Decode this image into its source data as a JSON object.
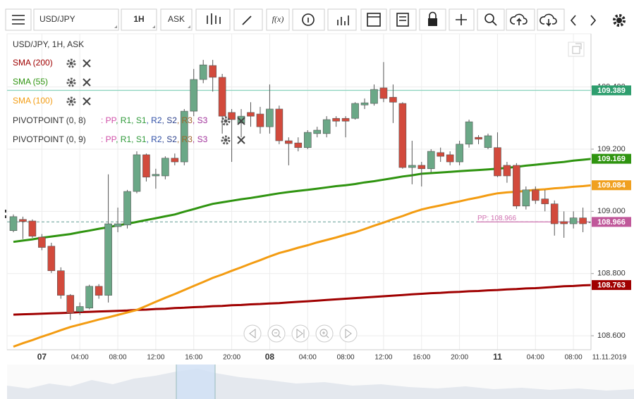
{
  "toolbar": {
    "symbol": "USD/JPY",
    "interval": "1H",
    "price_type": "ASK",
    "fx": "f(x)"
  },
  "chart_data": {
    "type": "candlestick",
    "title": "USD/JPY, 1H, ASK",
    "categories": [
      null,
      null,
      null,
      "07",
      null,
      null,
      null,
      "04:00",
      null,
      null,
      null,
      "08:00",
      null,
      null,
      null,
      "12:00",
      null,
      null,
      null,
      "16:00",
      null,
      null,
      null,
      "20:00",
      null,
      null,
      null,
      "08",
      null,
      null,
      null,
      "04:00",
      null,
      null,
      null,
      "08:00",
      null,
      null,
      null,
      "12:00",
      null,
      null,
      null,
      "16:00",
      null,
      null,
      null,
      "20:00",
      null,
      null,
      null,
      "11",
      null,
      null,
      null,
      "04:00",
      null,
      null,
      null,
      "08:00",
      null,
      null
    ],
    "open": [
      108.938,
      108.974,
      108.969,
      108.917,
      108.888,
      108.809,
      108.73,
      108.678,
      108.689,
      108.759,
      108.73,
      108.951,
      108.956,
      109.064,
      109.182,
      109.114,
      109.114,
      109.171,
      109.159,
      109.322,
      109.424,
      109.469,
      109.431,
      109.318,
      109.284,
      109.318,
      109.313,
      109.272,
      109.329,
      109.227,
      109.22,
      109.205,
      109.25,
      109.25,
      109.299,
      109.299,
      109.299,
      109.342,
      109.347,
      109.397,
      109.367,
      109.347,
      109.141,
      109.148,
      109.137,
      109.189,
      109.182,
      109.159,
      109.216,
      109.238,
      109.205,
      109.205,
      109.148,
      109.148,
      109.017,
      109.069,
      109.04,
      109.024,
      108.967,
      108.96,
      108.979,
      108.965
    ],
    "high": [
      108.99,
      108.983,
      108.974,
      108.927,
      108.899,
      108.82,
      108.734,
      108.707,
      108.764,
      108.766,
      109.119,
      109.012,
      109.069,
      109.193,
      109.186,
      109.137,
      109.177,
      109.186,
      109.329,
      109.458,
      109.487,
      109.487,
      109.442,
      109.329,
      109.329,
      109.351,
      109.336,
      109.408,
      109.34,
      109.238,
      109.238,
      109.261,
      109.272,
      109.306,
      109.306,
      109.306,
      109.351,
      109.363,
      109.408,
      109.48,
      109.408,
      109.351,
      109.227,
      109.159,
      109.2,
      109.205,
      109.193,
      109.227,
      109.295,
      109.245,
      109.25,
      109.254,
      109.159,
      109.155,
      109.08,
      109.08,
      109.069,
      109.035,
      109.0,
      109.0,
      109.012,
      108.99
    ],
    "low": [
      108.933,
      108.911,
      108.915,
      108.875,
      108.802,
      108.719,
      108.651,
      108.667,
      108.685,
      108.719,
      108.707,
      108.933,
      108.945,
      109.058,
      109.096,
      109.073,
      109.103,
      109.148,
      109.148,
      109.306,
      109.412,
      109.385,
      109.25,
      109.159,
      109.238,
      109.272,
      109.25,
      109.25,
      109.216,
      109.148,
      109.193,
      109.2,
      109.238,
      109.238,
      109.272,
      109.238,
      109.295,
      109.329,
      109.34,
      109.351,
      109.284,
      109.137,
      109.087,
      109.08,
      109.125,
      109.159,
      109.148,
      109.148,
      109.205,
      109.216,
      109.2,
      109.11,
      109.092,
      109.008,
      109.006,
      109.024,
      109.0,
      108.922,
      108.915,
      108.945,
      108.933,
      108.956
    ],
    "close": [
      108.983,
      108.967,
      108.92,
      108.884,
      108.809,
      108.73,
      108.673,
      108.694,
      108.759,
      108.73,
      108.96,
      108.96,
      109.064,
      109.182,
      109.11,
      109.119,
      109.171,
      109.159,
      109.322,
      109.424,
      109.471,
      109.431,
      109.306,
      109.295,
      109.306,
      109.306,
      109.272,
      109.329,
      109.227,
      109.218,
      109.205,
      109.254,
      109.261,
      109.295,
      109.29,
      109.29,
      109.347,
      109.349,
      109.392,
      109.363,
      109.351,
      109.141,
      109.148,
      109.137,
      109.193,
      109.177,
      109.159,
      109.216,
      109.288,
      109.232,
      109.243,
      109.114,
      109.114,
      109.017,
      109.069,
      109.035,
      109.024,
      108.96,
      108.96,
      108.979,
      108.96,
      108.966
    ],
    "up_color": "#6ba887",
    "down_color": "#d24a3c",
    "series": [
      {
        "name": "SMA (200)",
        "color": "#a00000",
        "values": [
          108.668,
          108.669,
          108.67,
          108.671,
          108.672,
          108.673,
          108.674,
          108.676,
          108.677,
          108.678,
          108.679,
          108.68,
          108.681,
          108.683,
          108.684,
          108.686,
          108.687,
          108.689,
          108.69,
          108.692,
          108.693,
          108.695,
          108.696,
          108.698,
          108.699,
          108.701,
          108.702,
          108.704,
          108.705,
          108.707,
          108.709,
          108.711,
          108.713,
          108.715,
          108.717,
          108.719,
          108.721,
          108.723,
          108.725,
          108.727,
          108.729,
          108.731,
          108.733,
          108.735,
          108.737,
          108.738,
          108.74,
          108.741,
          108.743,
          108.744,
          108.746,
          108.747,
          108.749,
          108.75,
          108.752,
          108.753,
          108.755,
          108.757,
          108.759,
          108.76,
          108.762,
          108.763
        ]
      },
      {
        "name": "SMA (55)",
        "color": "#2f9410",
        "values": [
          108.902,
          108.906,
          108.91,
          108.915,
          108.919,
          108.923,
          108.927,
          108.933,
          108.938,
          108.944,
          108.949,
          108.955,
          108.96,
          108.966,
          108.972,
          108.978,
          108.984,
          108.99,
          108.999,
          109.007,
          109.016,
          109.024,
          109.029,
          109.034,
          109.039,
          109.043,
          109.048,
          109.053,
          109.058,
          109.062,
          109.066,
          109.069,
          109.073,
          109.077,
          109.081,
          109.084,
          109.088,
          109.093,
          109.097,
          109.102,
          109.107,
          109.112,
          109.116,
          109.121,
          109.123,
          109.125,
          109.127,
          109.129,
          109.131,
          109.133,
          109.135,
          109.137,
          109.14,
          109.143,
          109.147,
          109.15,
          109.153,
          109.156,
          109.159,
          109.163,
          109.166,
          109.169
        ]
      },
      {
        "name": "SMA (100)",
        "color": "#f39c12",
        "values": [
          108.565,
          108.576,
          108.586,
          108.597,
          108.607,
          108.618,
          108.628,
          108.636,
          108.644,
          108.652,
          108.659,
          108.667,
          108.675,
          108.683,
          108.696,
          108.709,
          108.722,
          108.734,
          108.747,
          108.76,
          108.773,
          108.786,
          108.797,
          108.809,
          108.82,
          108.832,
          108.843,
          108.855,
          108.866,
          108.874,
          108.883,
          108.891,
          108.9,
          108.908,
          108.916,
          108.925,
          108.933,
          108.943,
          108.954,
          108.964,
          108.975,
          108.985,
          108.996,
          109.006,
          109.013,
          109.019,
          109.026,
          109.032,
          109.039,
          109.045,
          109.052,
          109.058,
          109.061,
          109.063,
          109.066,
          109.069,
          109.071,
          109.074,
          109.076,
          109.079,
          109.081,
          109.084
        ]
      }
    ],
    "indicators": [
      {
        "name": "PIVOTPOINT (0, 8)",
        "levels": [
          ": PP",
          ", R1",
          ", S1",
          ", R2",
          ", S2",
          ", R3",
          ", S3"
        ]
      },
      {
        "name": "PIVOTPOINT (0, 9)",
        "levels": [
          ": PP",
          ", R1",
          ", S1",
          ", R2",
          ", S2",
          ", R3",
          ", S3"
        ]
      }
    ],
    "level_colors": [
      "#d04fa8",
      "#2f9a3a",
      "#2f9a3a",
      "#3050a8",
      "#2a3f8a",
      "#a0642a",
      "#a0309a"
    ],
    "pivot": {
      "value": 108.966,
      "value_label": "PP: 108.966",
      "color": "#d070b0"
    },
    "price_tags": [
      {
        "value": 109.389,
        "color": "#2e9e6e",
        "line": "solid",
        "line_color": "#8fd4c0"
      },
      {
        "value": 109.169,
        "color": "#2f9410"
      },
      {
        "value": 109.084,
        "color": "#f0a020"
      },
      {
        "value": 108.966,
        "color": "#c0589a",
        "line": "dashed",
        "line_color": "#7fb0a8"
      },
      {
        "value": 108.763,
        "color": "#a00000"
      }
    ],
    "date_label": "11.11.2019",
    "ylim": [
      108.555,
      109.571
    ],
    "yticks": [
      {
        "value": 108.6,
        "label": "108.600"
      },
      {
        "value": 108.8,
        "label": "108.800"
      },
      {
        "value": 109.0,
        "label": "109.000"
      },
      {
        "value": 109.2,
        "label": "109.200"
      },
      {
        "value": 109.4,
        "label": "109.400"
      }
    ],
    "grid": true
  }
}
